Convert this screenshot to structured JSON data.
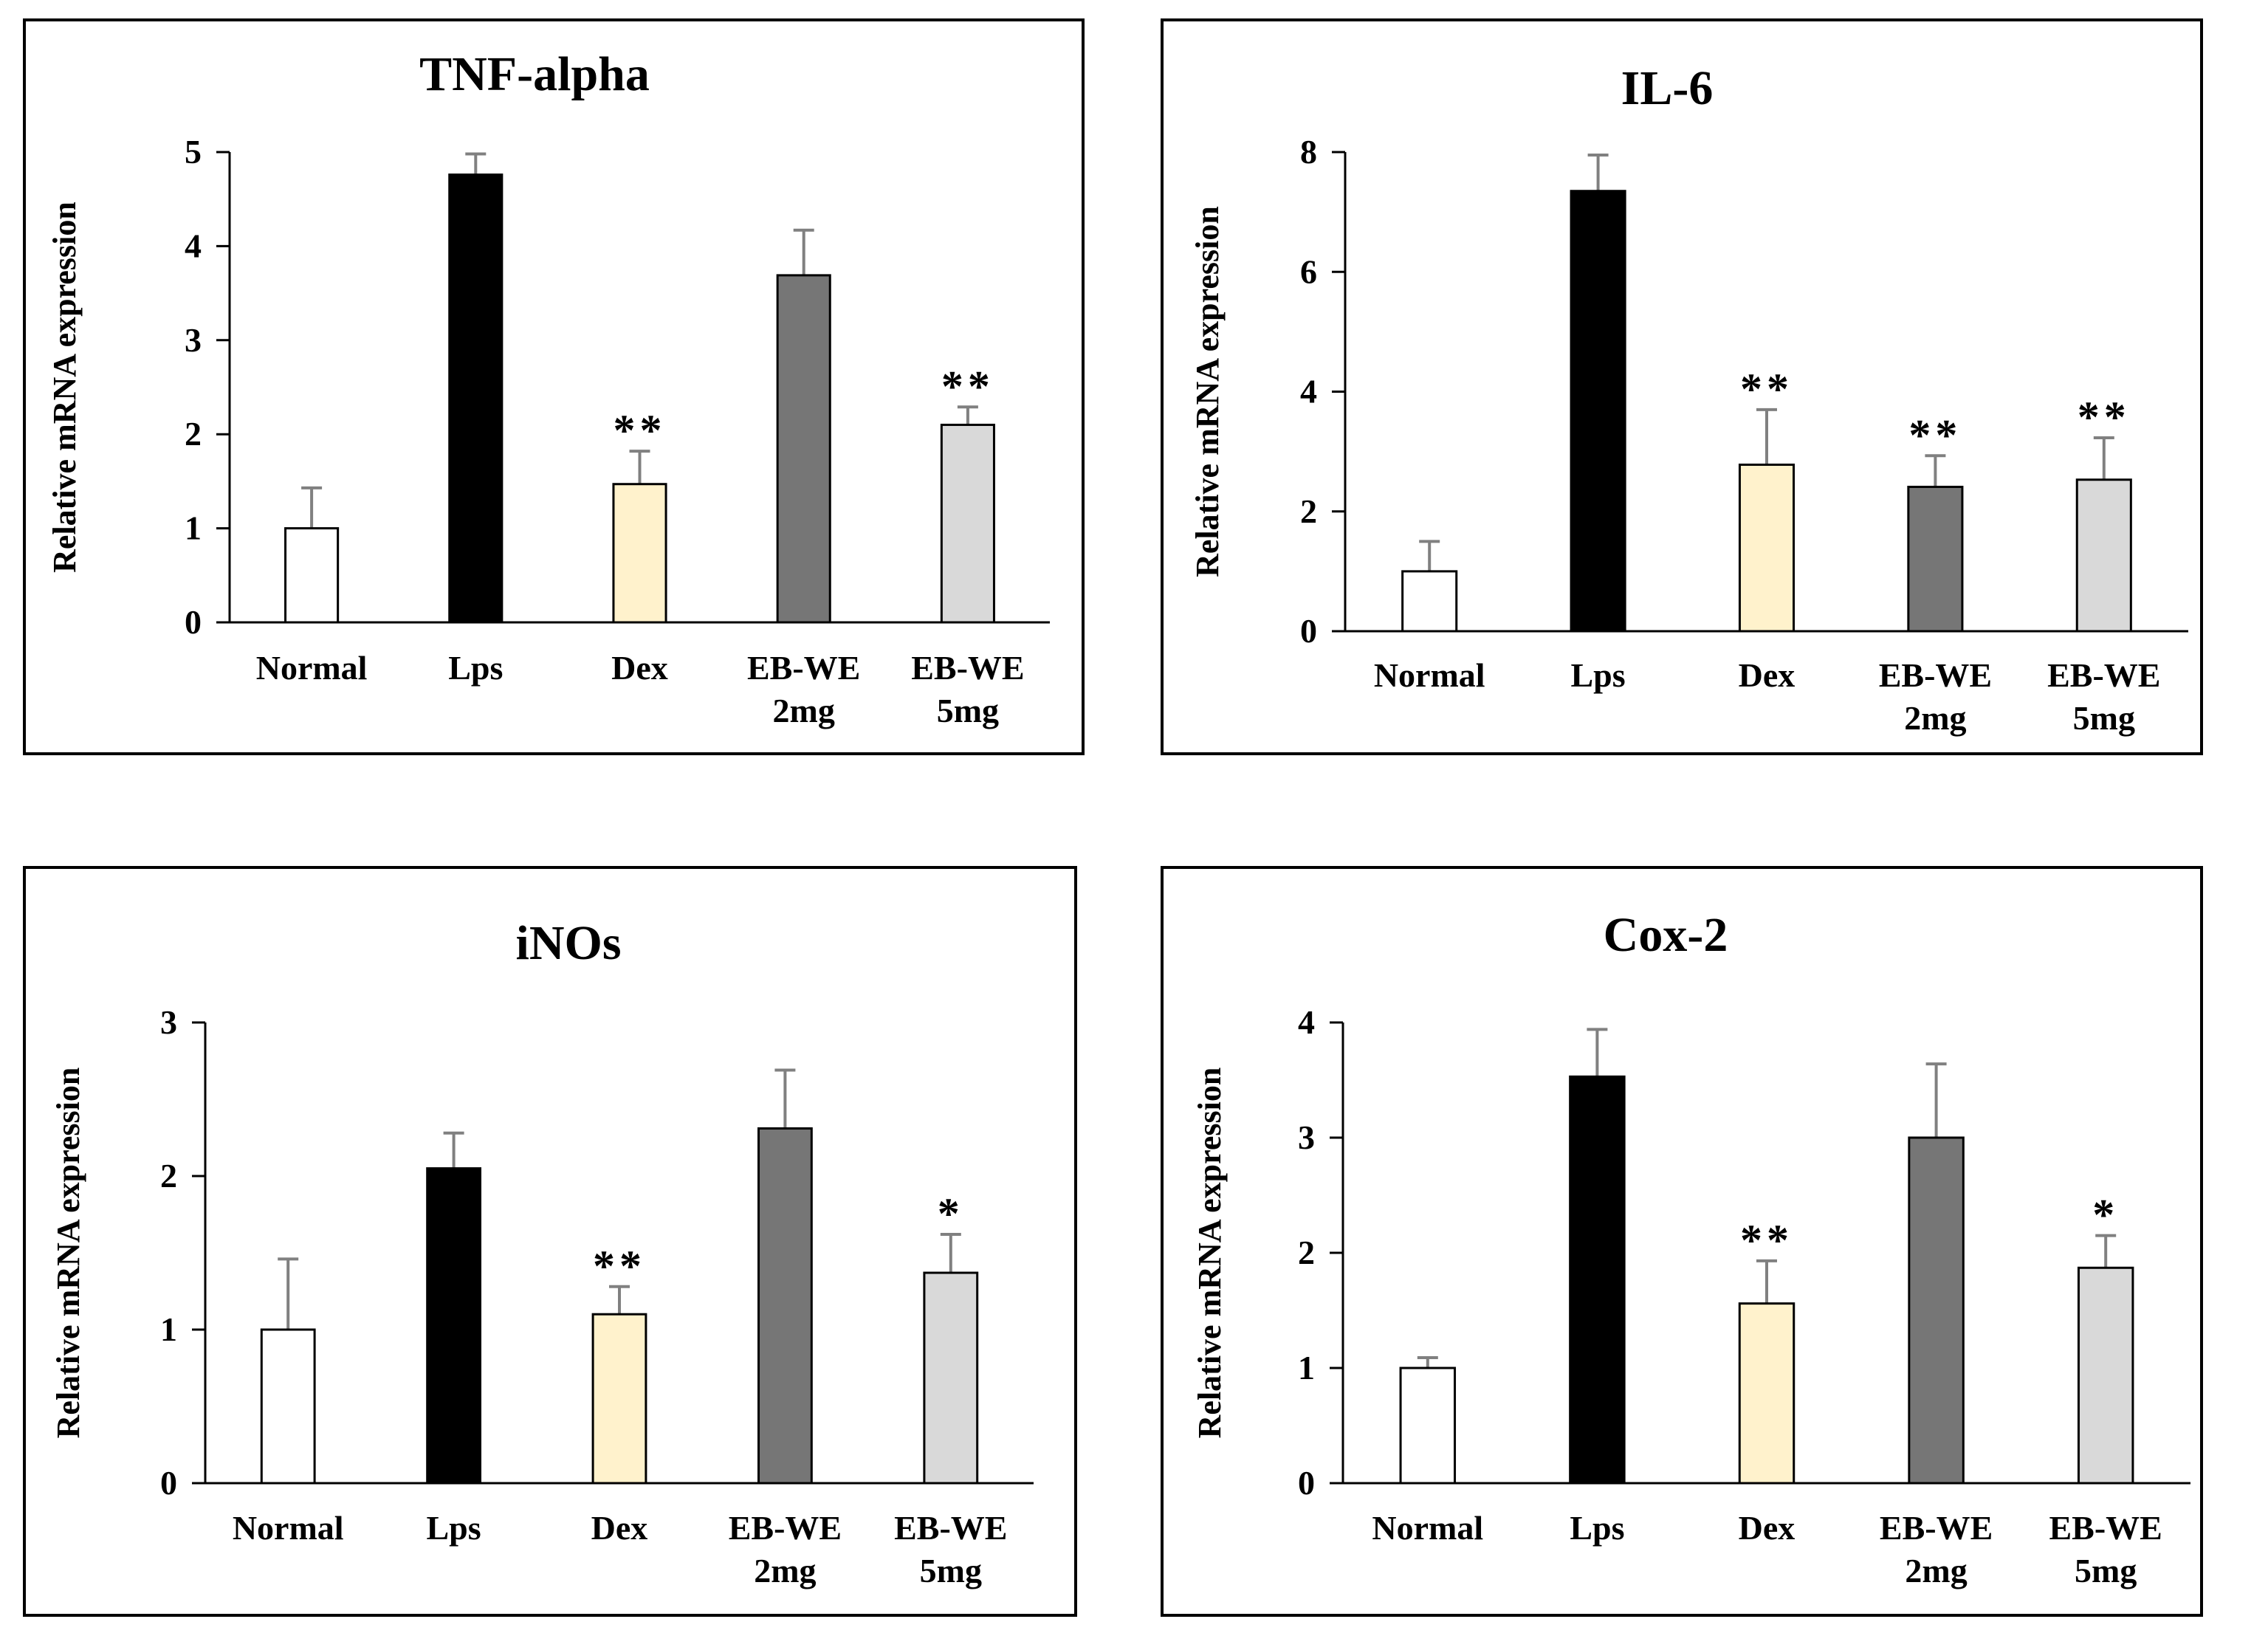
{
  "colors": {
    "normal": "#ffffff",
    "lps": "#000000",
    "dex": "#fff2cc",
    "ebwe2": "#767676",
    "ebwe5": "#d9d9d9",
    "axis": "#000000",
    "errorbar": "#808080"
  },
  "chart_data": [
    {
      "type": "bar",
      "title": "TNF-alpha",
      "ylabel": "Relative mRNA expression",
      "ylim": [
        0,
        5
      ],
      "yticks": [
        "0",
        "1",
        "2",
        "3",
        "4",
        "5"
      ],
      "categories": [
        [
          "Normal"
        ],
        [
          "Lps"
        ],
        [
          "Dex"
        ],
        [
          "EB-WE",
          "2mg"
        ],
        [
          "EB-WE",
          "5mg"
        ]
      ],
      "values": [
        1.0,
        4.76,
        1.47,
        3.69,
        2.1
      ],
      "errors": [
        0.43,
        0.22,
        0.35,
        0.48,
        0.19
      ],
      "significance": [
        "",
        "",
        "**",
        "",
        "**"
      ]
    },
    {
      "type": "bar",
      "title": "IL-6",
      "ylabel": "Relative mRNA expression",
      "ylim": [
        0,
        8
      ],
      "yticks": [
        "0",
        "2",
        "4",
        "6",
        "8"
      ],
      "categories": [
        [
          "Normal"
        ],
        [
          "Lps"
        ],
        [
          "Dex"
        ],
        [
          "EB-WE",
          "2mg"
        ],
        [
          "EB-WE",
          "5mg"
        ]
      ],
      "values": [
        1.0,
        7.35,
        2.78,
        2.41,
        2.53
      ],
      "errors": [
        0.5,
        0.6,
        0.92,
        0.52,
        0.7
      ],
      "significance": [
        "",
        "",
        "**",
        "**",
        "**"
      ]
    },
    {
      "type": "bar",
      "title": "iNOs",
      "ylabel": "Relative mRNA expression",
      "ylim": [
        0,
        3
      ],
      "yticks": [
        "0",
        "1",
        "2",
        "3"
      ],
      "categories": [
        [
          "Normal"
        ],
        [
          "Lps"
        ],
        [
          "Dex"
        ],
        [
          "EB-WE",
          "2mg"
        ],
        [
          "EB-WE",
          "5mg"
        ]
      ],
      "values": [
        1.0,
        2.05,
        1.1,
        2.31,
        1.37
      ],
      "errors": [
        0.46,
        0.23,
        0.18,
        0.38,
        0.25
      ],
      "significance": [
        "",
        "",
        "**",
        "",
        "*"
      ]
    },
    {
      "type": "bar",
      "title": "Cox-2",
      "ylabel": "Relative mRNA expression",
      "ylim": [
        0,
        4
      ],
      "yticks": [
        "0",
        "1",
        "2",
        "3",
        "4"
      ],
      "categories": [
        [
          "Normal"
        ],
        [
          "Lps"
        ],
        [
          "Dex"
        ],
        [
          "EB-WE",
          "2mg"
        ],
        [
          "EB-WE",
          "5mg"
        ]
      ],
      "values": [
        1.0,
        3.53,
        1.56,
        3.0,
        1.87
      ],
      "errors": [
        0.09,
        0.41,
        0.37,
        0.64,
        0.28
      ],
      "significance": [
        "",
        "",
        "**",
        "",
        "*"
      ]
    }
  ]
}
